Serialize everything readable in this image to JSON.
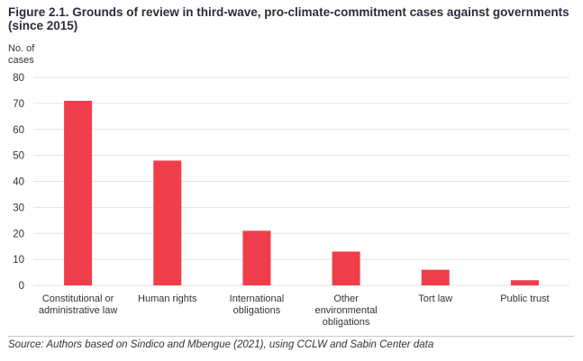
{
  "chart_data": {
    "type": "bar",
    "title": "Figure 2.1. Grounds of review in third-wave, pro-climate-commitment cases against governments (since 2015)",
    "ylabel": "No. of cases",
    "xlabel": "",
    "categories": [
      "Constitutional or administrative law",
      "Human rights",
      "International obligations",
      "Other environmental obligations",
      "Tort law",
      "Public trust"
    ],
    "category_lines": [
      [
        "Constitutional or",
        "administrative law"
      ],
      [
        "Human rights"
      ],
      [
        "International",
        "obligations"
      ],
      [
        "Other",
        "environmental",
        "obligations"
      ],
      [
        "Tort law"
      ],
      [
        "Public trust"
      ]
    ],
    "values": [
      71,
      48,
      21,
      13,
      6,
      2
    ],
    "ylim": [
      0,
      80
    ],
    "yticks": [
      0,
      10,
      20,
      30,
      40,
      50,
      60,
      70,
      80
    ],
    "grid": true,
    "bar_color": "#ef3e4a",
    "source": "Source: Authors based on Sindico and Mbengue (2021), using CCLW and Sabin Center data"
  }
}
